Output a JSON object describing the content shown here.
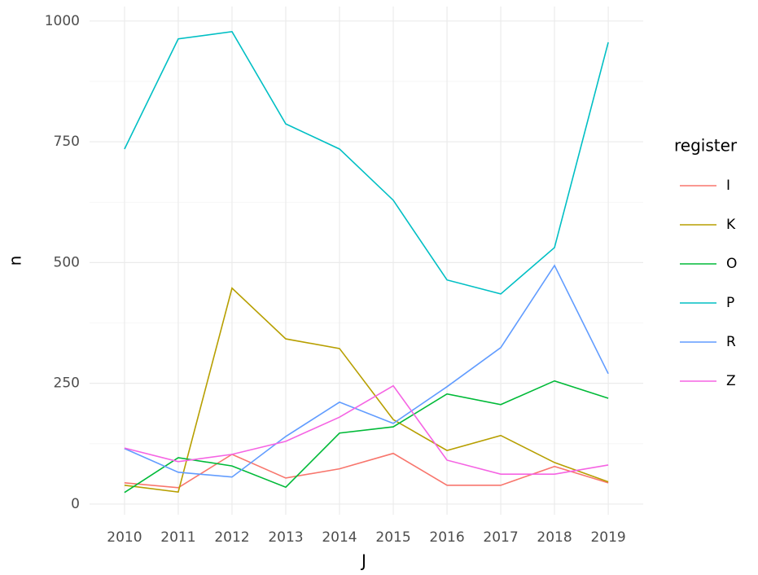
{
  "chart_data": {
    "type": "line",
    "x_label": "J",
    "y_label": "n",
    "legend_title": "register",
    "x": [
      2010,
      2011,
      2012,
      2013,
      2014,
      2015,
      2016,
      2017,
      2018,
      2019
    ],
    "series": [
      {
        "name": "I",
        "color": "#F8766D",
        "values": [
          44,
          34,
          103,
          54,
          73,
          105,
          39,
          39,
          78,
          44
        ]
      },
      {
        "name": "K",
        "color": "#B79F00",
        "values": [
          39,
          25,
          447,
          342,
          322,
          175,
          111,
          142,
          86,
          46
        ]
      },
      {
        "name": "O",
        "color": "#00BA38",
        "values": [
          24,
          96,
          79,
          35,
          147,
          160,
          228,
          206,
          255,
          219
        ]
      },
      {
        "name": "P",
        "color": "#00BFC4",
        "values": [
          735,
          963,
          978,
          787,
          735,
          629,
          464,
          435,
          531,
          956
        ]
      },
      {
        "name": "R",
        "color": "#619CFF",
        "values": [
          115,
          66,
          56,
          140,
          211,
          167,
          243,
          324,
          494,
          270
        ]
      },
      {
        "name": "Z",
        "color": "#F564E3",
        "values": [
          116,
          88,
          103,
          130,
          180,
          245,
          91,
          62,
          62,
          81
        ]
      }
    ],
    "xlim": [
      2009.35,
      2019.65
    ],
    "xticks": [
      2010,
      2011,
      2012,
      2013,
      2014,
      2015,
      2016,
      2017,
      2018,
      2019
    ],
    "ylim": [
      -22,
      1030
    ],
    "yticks": [
      0,
      250,
      500,
      750,
      1000
    ],
    "grid": true,
    "legend": "right"
  }
}
